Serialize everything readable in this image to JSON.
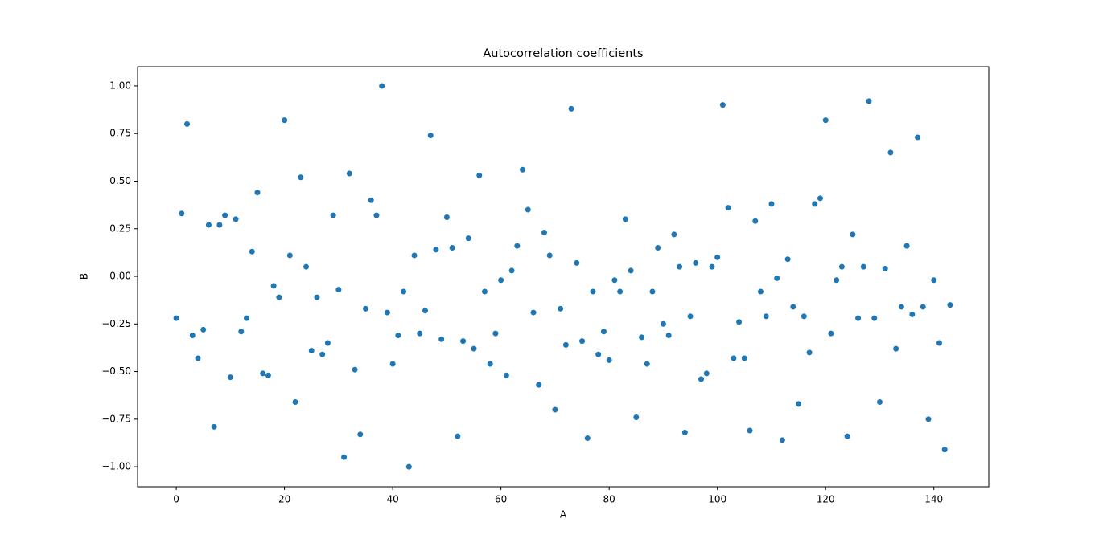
{
  "chart_data": {
    "type": "scatter",
    "title": "Autocorrelation coefficients",
    "x_label": "A",
    "y_label": "B",
    "x": [
      0,
      1,
      2,
      3,
      4,
      5,
      6,
      7,
      8,
      9,
      10,
      11,
      12,
      13,
      14,
      15,
      16,
      17,
      18,
      19,
      20,
      21,
      22,
      23,
      24,
      25,
      26,
      27,
      28,
      29,
      30,
      31,
      32,
      33,
      34,
      35,
      36,
      37,
      38,
      39,
      40,
      41,
      42,
      43,
      44,
      45,
      46,
      47,
      48,
      49,
      50,
      51,
      52,
      53,
      54,
      55,
      56,
      57,
      58,
      59,
      60,
      61,
      62,
      63,
      64,
      65,
      66,
      67,
      68,
      69,
      70,
      71,
      72,
      73,
      74,
      75,
      76,
      77,
      78,
      79,
      80,
      81,
      82,
      83,
      84,
      85,
      86,
      87,
      88,
      89,
      90,
      91,
      92,
      93,
      94,
      95,
      96,
      97,
      98,
      99,
      100,
      101,
      102,
      103,
      104,
      105,
      106,
      107,
      108,
      109,
      110,
      111,
      112,
      113,
      114,
      115,
      116,
      117,
      118,
      119,
      120,
      121,
      122,
      123,
      124,
      125,
      126,
      127,
      128,
      129,
      130,
      131,
      132,
      133,
      134,
      135,
      136,
      137,
      138,
      139,
      140,
      141,
      142,
      143
    ],
    "values": [
      -0.22,
      0.33,
      0.8,
      -0.31,
      -0.43,
      -0.28,
      0.27,
      -0.79,
      0.27,
      0.32,
      -0.53,
      0.3,
      -0.29,
      -0.22,
      0.13,
      0.44,
      -0.51,
      -0.52,
      -0.05,
      -0.11,
      0.82,
      0.11,
      -0.66,
      0.52,
      0.05,
      -0.39,
      -0.11,
      -0.41,
      -0.35,
      0.32,
      -0.07,
      -0.95,
      0.54,
      -0.49,
      -0.83,
      -0.17,
      0.4,
      0.32,
      1.0,
      -0.19,
      -0.46,
      -0.31,
      -0.08,
      -1.0,
      0.11,
      -0.3,
      -0.18,
      0.74,
      0.14,
      -0.33,
      0.31,
      0.15,
      -0.84,
      -0.34,
      0.2,
      -0.38,
      0.53,
      -0.08,
      -0.46,
      -0.3,
      -0.02,
      -0.52,
      0.03,
      0.16,
      0.56,
      0.35,
      -0.19,
      -0.57,
      0.23,
      0.11,
      -0.7,
      -0.17,
      -0.36,
      0.88,
      0.07,
      -0.34,
      -0.85,
      -0.08,
      -0.41,
      -0.29,
      -0.44,
      -0.02,
      -0.08,
      0.3,
      0.03,
      -0.74,
      -0.32,
      -0.46,
      -0.08,
      0.15,
      -0.25,
      -0.31,
      0.22,
      0.05,
      -0.82,
      -0.21,
      0.07,
      -0.54,
      -0.51,
      0.05,
      0.1,
      0.9,
      0.36,
      -0.43,
      -0.24,
      -0.43,
      -0.81,
      0.29,
      -0.08,
      -0.21,
      0.38,
      -0.01,
      -0.86,
      0.09,
      -0.16,
      -0.67,
      -0.21,
      -0.4,
      0.38,
      0.41,
      0.82,
      -0.3,
      -0.02,
      0.05,
      -0.84,
      0.22,
      -0.22,
      0.05,
      0.92,
      -0.22,
      -0.66,
      0.04,
      0.65,
      -0.38,
      -0.16,
      0.16,
      -0.2,
      0.73,
      -0.16,
      -0.75,
      -0.02,
      -0.35,
      -0.91,
      -0.15
    ],
    "color": "#1f77b4",
    "xlim": [
      -7.15,
      150.15
    ],
    "ylim": [
      -1.105,
      1.101
    ],
    "xticks": [
      0,
      20,
      40,
      60,
      80,
      100,
      120,
      140
    ],
    "yticks": [
      {
        "value": -1,
        "label": "−1.00"
      },
      {
        "value": -0.75,
        "label": "−0.75"
      },
      {
        "value": -0.5,
        "label": "−0.50"
      },
      {
        "value": -0.25,
        "label": "−0.25"
      },
      {
        "value": 0,
        "label": "0.00"
      },
      {
        "value": 0.25,
        "label": "0.25"
      },
      {
        "value": 0.5,
        "label": "0.50"
      },
      {
        "value": 0.75,
        "label": "0.75"
      },
      {
        "value": 1,
        "label": "1.00"
      }
    ],
    "grid": false
  }
}
